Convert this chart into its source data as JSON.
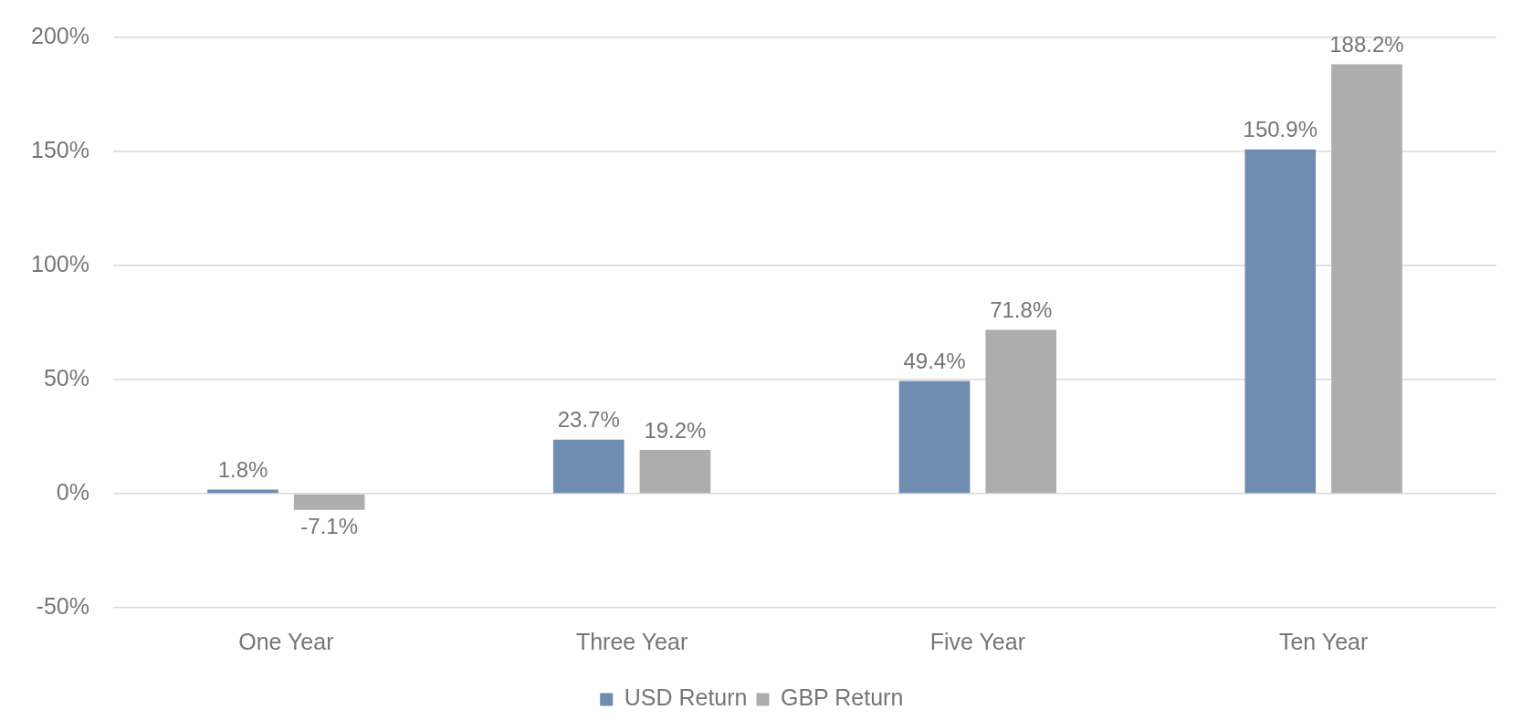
{
  "chart_data": {
    "type": "bar",
    "categories": [
      "One Year",
      "Three Year",
      "Five Year",
      "Ten Year"
    ],
    "series": [
      {
        "name": "USD Return",
        "color": "#6e8db0",
        "values": [
          1.8,
          23.7,
          49.4,
          150.9
        ],
        "value_labels": [
          "1.8%",
          "23.7%",
          "49.4%",
          "150.9%"
        ]
      },
      {
        "name": "GBP Return",
        "color": "#adadae",
        "values": [
          -7.1,
          19.2,
          71.8,
          188.2
        ],
        "value_labels": [
          "-7.1%",
          "19.2%",
          "71.8%",
          "188.2%"
        ]
      }
    ],
    "ylim": [
      -50,
      200
    ],
    "yticks": [
      {
        "value": -50,
        "label": "-50%"
      },
      {
        "value": 0,
        "label": "0%"
      },
      {
        "value": 50,
        "label": "50%"
      },
      {
        "value": 100,
        "label": "100%"
      },
      {
        "value": 150,
        "label": "150%"
      },
      {
        "value": 200,
        "label": "200%"
      }
    ],
    "grid": "y",
    "legend": "bottom"
  }
}
